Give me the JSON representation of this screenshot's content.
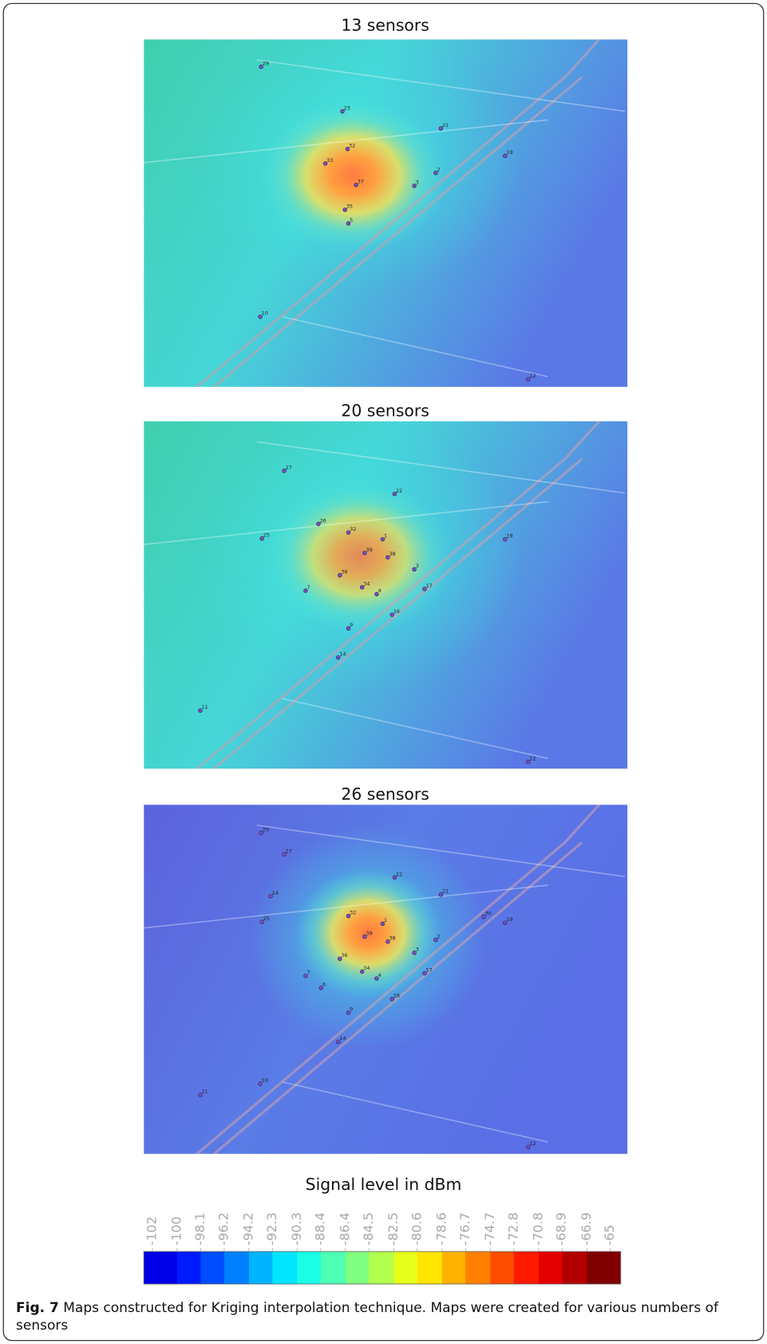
{
  "maps": [
    {
      "title": "13 sensors",
      "sensors": [
        "29",
        "23",
        "21",
        "32",
        "33",
        "37",
        "2",
        "19",
        "3",
        "35",
        "5",
        "10",
        "12"
      ]
    },
    {
      "title": "20 sensors",
      "sensors": [
        "27",
        "22",
        "26",
        "32",
        "1",
        "25",
        "19",
        "39",
        "38",
        "3",
        "36",
        "7",
        "34",
        "4",
        "17",
        "16",
        "9",
        "14",
        "11",
        "12"
      ]
    },
    {
      "title": "26 sensors",
      "sensors": [
        "29",
        "27",
        "22",
        "24",
        "21",
        "25",
        "32",
        "1",
        "30",
        "19",
        "39",
        "38",
        "2",
        "3",
        "36",
        "7",
        "34",
        "4",
        "17",
        "6",
        "16",
        "9",
        "14",
        "10",
        "11",
        "12"
      ]
    }
  ],
  "colorbar": {
    "title": "Signal level in dBm",
    "lim": [
      -102,
      -65
    ],
    "ticks": [
      -102,
      -100,
      -98.1,
      -96.2,
      -94.2,
      -92.3,
      -90.3,
      -88.4,
      -86.4,
      -84.5,
      -82.5,
      -80.6,
      -78.6,
      -76.7,
      -74.7,
      -72.8,
      -70.8,
      -68.9,
      -66.9,
      -65
    ]
  },
  "caption": {
    "label": "Fig. 7",
    "text": "Maps constructed for Kriging interpolation technique. Maps were created for various numbers of sensors"
  }
}
